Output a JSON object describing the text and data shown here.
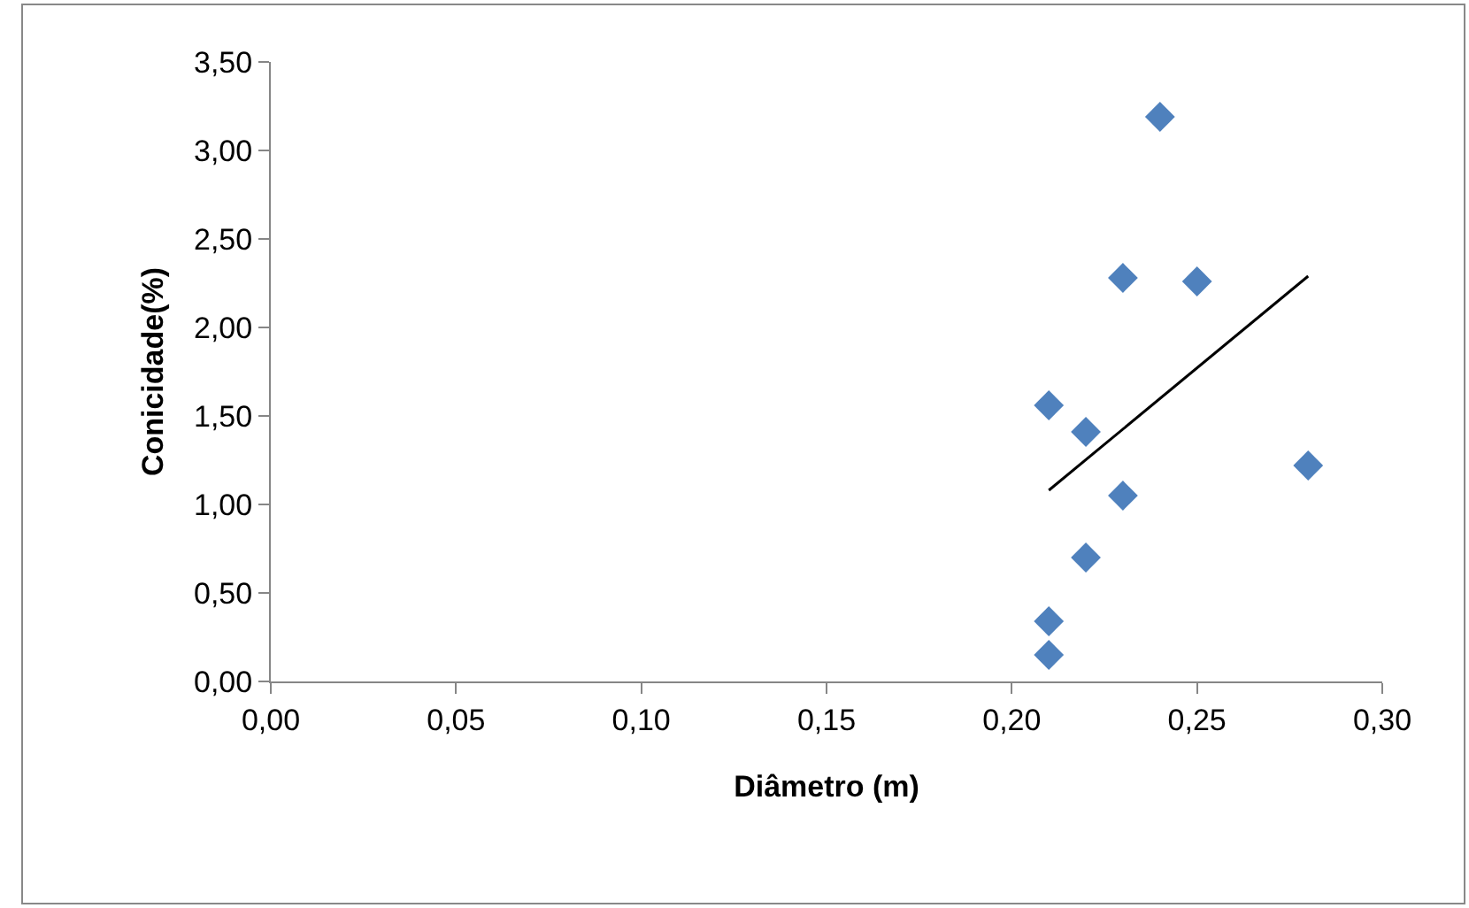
{
  "chart_data": {
    "type": "scatter",
    "xlabel": "Diâmetro (m)",
    "ylabel": "Conicidade(%)",
    "series": [
      {
        "color": "#4f81bd",
        "marker": "diamond",
        "x": [
          0.21,
          0.21,
          0.21,
          0.22,
          0.22,
          0.23,
          0.23,
          0.24,
          0.25,
          0.28
        ],
        "values": [
          1.56,
          0.34,
          0.15,
          1.41,
          0.7,
          2.28,
          1.05,
          3.19,
          2.26,
          1.22
        ]
      },
      {
        "type": "line",
        "color": "#000000",
        "marker": "none",
        "line_style": "solid",
        "x": [
          0.21,
          0.28
        ],
        "values": [
          1.08,
          2.29
        ]
      }
    ],
    "xlim": [
      0,
      0.3
    ],
    "ylim": [
      0,
      3.5
    ],
    "xticks": [
      {
        "value": 0,
        "label": "0,00"
      },
      {
        "value": 0.05,
        "label": "0,05"
      },
      {
        "value": 0.1,
        "label": "0,10"
      },
      {
        "value": 0.15,
        "label": "0,15"
      },
      {
        "value": 0.2,
        "label": "0,20"
      },
      {
        "value": 0.25,
        "label": "0,25"
      },
      {
        "value": 0.3,
        "label": "0,30"
      }
    ],
    "yticks": [
      {
        "value": 0,
        "label": "0,00"
      },
      {
        "value": 0.5,
        "label": "0,50"
      },
      {
        "value": 1,
        "label": "1,00"
      },
      {
        "value": 1.5,
        "label": "1,50"
      },
      {
        "value": 2,
        "label": "2,00"
      },
      {
        "value": 2.5,
        "label": "2,50"
      },
      {
        "value": 3,
        "label": "3,00"
      },
      {
        "value": 3.5,
        "label": "3,50"
      }
    ],
    "grid": false,
    "legend": false
  }
}
